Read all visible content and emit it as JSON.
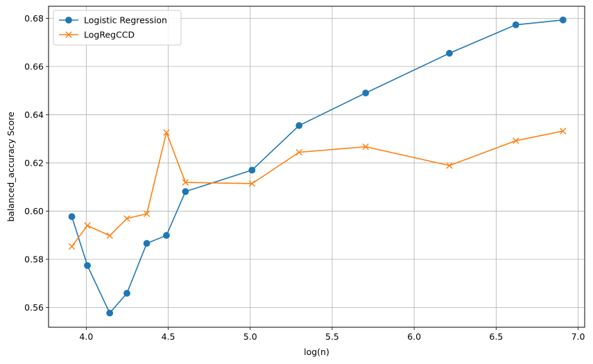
{
  "chart_data": {
    "type": "line",
    "title": "",
    "xlabel": "log(n)",
    "ylabel": "balanced_accuracy Score",
    "xlim": [
      3.77,
      7.04
    ],
    "ylim": [
      0.5518,
      0.685
    ],
    "xticks": [
      4.0,
      4.5,
      5.0,
      5.5,
      6.0,
      6.5,
      7.0
    ],
    "xtick_labels": [
      "4.0",
      "4.5",
      "5.0",
      "5.5",
      "6.0",
      "6.5",
      "7.0"
    ],
    "yticks": [
      0.56,
      0.58,
      0.6,
      0.62,
      0.64,
      0.66,
      0.68
    ],
    "ytick_labels": [
      "0.56",
      "0.58",
      "0.60",
      "0.62",
      "0.64",
      "0.66",
      "0.68"
    ],
    "grid": true,
    "legend_position": "top-left",
    "x": [
      3.912,
      4.007,
      4.143,
      4.248,
      4.369,
      4.489,
      4.605,
      5.011,
      5.298,
      5.704,
      6.215,
      6.62,
      6.908
    ],
    "series": [
      {
        "name": "Logistic Regression",
        "color": "#1f77b4",
        "marker": "circle",
        "values": [
          0.5977,
          0.5774,
          0.5577,
          0.5659,
          0.5866,
          0.5899,
          0.6081,
          0.617,
          0.6355,
          0.649,
          0.6655,
          0.6773,
          0.6793
        ]
      },
      {
        "name": "LogRegCCD",
        "color": "#ff7f0e",
        "marker": "x",
        "values": [
          0.5853,
          0.594,
          0.5898,
          0.5969,
          0.5989,
          0.6326,
          0.6119,
          0.6114,
          0.6244,
          0.6267,
          0.6189,
          0.6292,
          0.6332
        ]
      }
    ]
  }
}
